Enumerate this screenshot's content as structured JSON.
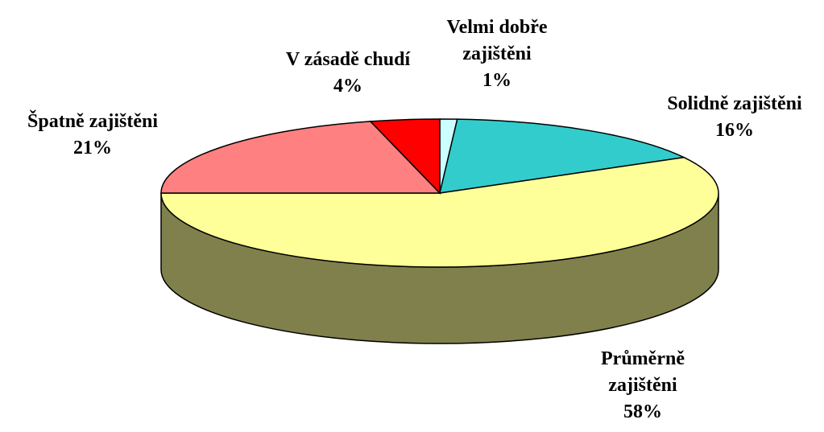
{
  "chart_data": {
    "type": "pie",
    "categories": [
      "Velmi dobře zajištěni",
      "Solidně zajištěni",
      "Průměrně zajištěni",
      "Špatně zajištěni",
      "V zásadě chudí"
    ],
    "values": [
      1,
      16,
      58,
      21,
      4
    ],
    "value_labels": [
      "1%",
      "16%",
      "58%",
      "21%",
      "4%"
    ],
    "colors": [
      "#ccffff",
      "#33cccc",
      "#ffff99",
      "#ff8080",
      "#ff0000"
    ]
  }
}
